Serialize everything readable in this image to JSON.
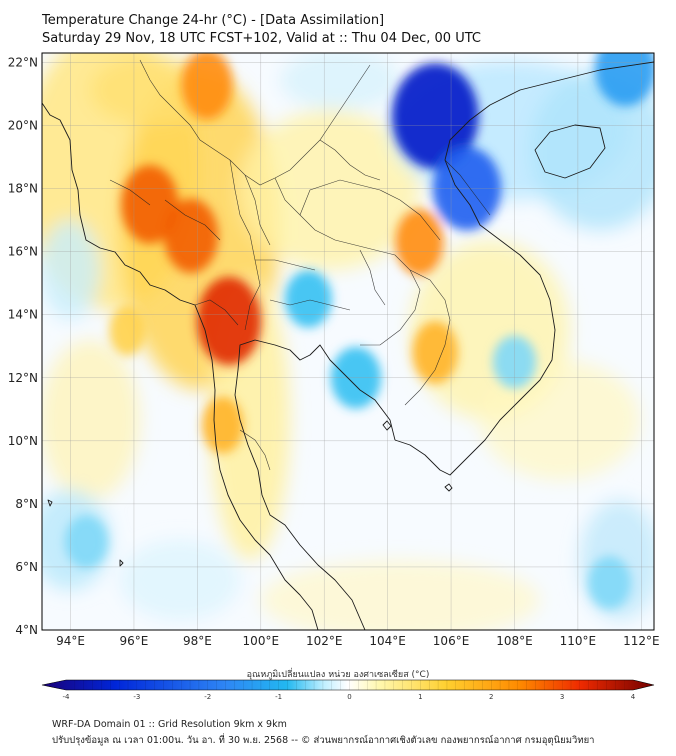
{
  "header": {
    "title": "Temperature Change 24-hr (°C) - [Data Assimilation]",
    "subtitle": "Saturday 29 Nov, 18 UTC FCST+102, Valid at :: Thu 04 Dec, 00 UTC"
  },
  "map": {
    "lat_labels": [
      "22°N",
      "20°N",
      "18°N",
      "16°N",
      "14°N",
      "12°N",
      "10°N",
      "8°N",
      "6°N",
      "4°N"
    ],
    "lon_labels": [
      "94°E",
      "96°E",
      "98°E",
      "100°E",
      "102°E",
      "104°E",
      "106°E",
      "108°E",
      "110°E",
      "112°E"
    ],
    "lat_range": [
      4,
      22.3
    ],
    "lon_range": [
      93.1,
      112.4
    ],
    "warm_spots": [
      {
        "lon": 99.0,
        "lat": 13.8,
        "dT": 2.9
      },
      {
        "lon": 96.5,
        "lat": 17.5,
        "dT": 2.4
      },
      {
        "lon": 97.8,
        "lat": 16.5,
        "dT": 2.2
      },
      {
        "lon": 98.3,
        "lat": 21.3,
        "dT": 2.0
      },
      {
        "lon": 105.0,
        "lat": 16.3,
        "dT": 1.8
      },
      {
        "lon": 105.5,
        "lat": 12.8,
        "dT": 1.6
      },
      {
        "lon": 98.8,
        "lat": 10.5,
        "dT": 1.3
      },
      {
        "lon": 95.8,
        "lat": 13.5,
        "dT": 1.0
      }
    ],
    "cool_spots": [
      {
        "lon": 105.5,
        "lat": 20.3,
        "dT": -3.4
      },
      {
        "lon": 106.5,
        "lat": 18.0,
        "dT": -2.4
      },
      {
        "lon": 111.5,
        "lat": 21.8,
        "dT": -2.0
      },
      {
        "lon": 101.5,
        "lat": 14.5,
        "dT": -1.2
      },
      {
        "lon": 103.0,
        "lat": 12.0,
        "dT": -1.4
      },
      {
        "lon": 108.0,
        "lat": 12.5,
        "dT": -1.0
      },
      {
        "lon": 94.5,
        "lat": 6.8,
        "dT": -1.0
      },
      {
        "lon": 111.0,
        "lat": 5.5,
        "dT": -1.0
      }
    ]
  },
  "colorbar": {
    "title": "อุณหภูมิเปลี่ยนแปลง หน่วย องศาเซลเซียส (°C)",
    "ticks": [
      "-4",
      "-3",
      "-2",
      "-1",
      "0",
      "1",
      "2",
      "3",
      "4"
    ],
    "colors": {
      "min": "#1a0078",
      "cold": "#0026d9",
      "cool": "#22b8f0",
      "neutral": "#ffffff",
      "warm": "#ffd030",
      "hot": "#ee2a00",
      "max": "#720000"
    }
  },
  "footer": {
    "line1": "WRF-DA Domain 01 :: Grid Resolution 9km x 9km",
    "line2": "ปรับปรุงข้อมูล ณ เวลา 01:00น. วัน อา. ที่ 30 พ.ย. 2568 -- © ส่วนพยากรณ์อากาศเชิงตัวเลข กองพยากรณ์อากาศ กรมอุตุนิยมวิทยา"
  }
}
